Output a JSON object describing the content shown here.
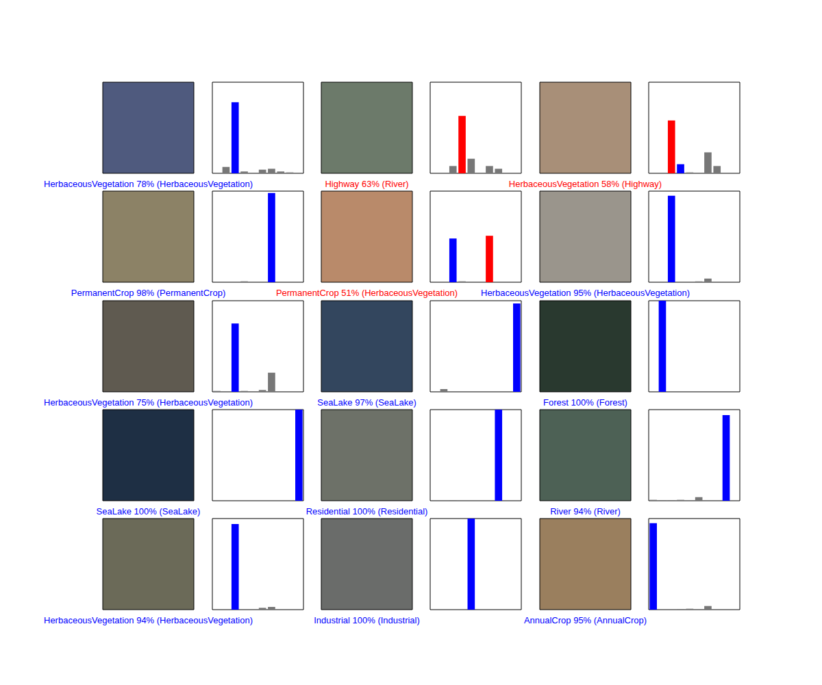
{
  "chart_data": [
    {
      "type": "bar",
      "xlabel": "HerbaceousVegetation 78% (HerbaceousVegetation)",
      "color": "blue",
      "categories": [
        null,
        null,
        null,
        null,
        null,
        null,
        null,
        null,
        null,
        null
      ],
      "values": [
        0,
        0.07,
        0.78,
        0.02,
        0,
        0.04,
        0.05,
        0.02,
        0.01,
        0
      ],
      "colors": [
        "#777777",
        "#777777",
        "blue",
        "#777777",
        "#777777",
        "#777777",
        "#777777",
        "#777777",
        "#777777",
        "#777777"
      ],
      "ylim": [
        0,
        1
      ],
      "yticks": [],
      "tick_labels": false,
      "grid": false
    },
    {
      "type": "bar",
      "xlabel": "Highway 63% (River)",
      "color": "red",
      "categories": [
        null,
        null,
        null,
        null,
        null,
        null,
        null,
        null,
        null,
        null
      ],
      "values": [
        0,
        0,
        0.08,
        0.63,
        0.16,
        0,
        0.08,
        0.05,
        0,
        0
      ],
      "colors": [
        "#777777",
        "#777777",
        "#777777",
        "red",
        "#777777",
        "#777777",
        "#777777",
        "#777777",
        "blue",
        "#777777"
      ],
      "ylim": [
        0,
        1
      ],
      "yticks": [],
      "tick_labels": false,
      "grid": false
    },
    {
      "type": "bar",
      "xlabel": "HerbaceousVegetation 58% (Highway)",
      "color": "red",
      "categories": [
        null,
        null,
        null,
        null,
        null,
        null,
        null,
        null,
        null,
        null
      ],
      "values": [
        0,
        0,
        0.58,
        0.1,
        0.01,
        0,
        0.23,
        0.08,
        0,
        0
      ],
      "colors": [
        "#777777",
        "#777777",
        "red",
        "blue",
        "#777777",
        "#777777",
        "#777777",
        "#777777",
        "#777777",
        "#777777"
      ],
      "ylim": [
        0,
        1
      ],
      "yticks": [],
      "tick_labels": false,
      "grid": false
    },
    {
      "type": "bar",
      "xlabel": "PermanentCrop 98% (PermanentCrop)",
      "color": "blue",
      "categories": [
        null,
        null,
        null,
        null,
        null,
        null,
        null,
        null,
        null,
        null
      ],
      "values": [
        0,
        0,
        0,
        0.01,
        0,
        0,
        0.98,
        0,
        0,
        0
      ],
      "colors": [
        "#777777",
        "#777777",
        "#777777",
        "#777777",
        "#777777",
        "#777777",
        "blue",
        "#777777",
        "#777777",
        "#777777"
      ],
      "ylim": [
        0,
        1
      ],
      "yticks": [],
      "tick_labels": false,
      "grid": false
    },
    {
      "type": "bar",
      "xlabel": "PermanentCrop 51% (HerbaceousVegetation)",
      "color": "red",
      "categories": [
        null,
        null,
        null,
        null,
        null,
        null,
        null,
        null,
        null,
        null
      ],
      "values": [
        0,
        0,
        0.48,
        0.01,
        0,
        0,
        0.51,
        0,
        0,
        0
      ],
      "colors": [
        "#777777",
        "#777777",
        "blue",
        "#777777",
        "#777777",
        "#777777",
        "red",
        "#777777",
        "#777777",
        "#777777"
      ],
      "ylim": [
        0,
        1
      ],
      "yticks": [],
      "tick_labels": false,
      "grid": false
    },
    {
      "type": "bar",
      "xlabel": "HerbaceousVegetation 95% (HerbaceousVegetation)",
      "color": "blue",
      "categories": [
        null,
        null,
        null,
        null,
        null,
        null,
        null,
        null,
        null,
        null
      ],
      "values": [
        0,
        0,
        0.95,
        0,
        0,
        0.01,
        0.04,
        0,
        0,
        0
      ],
      "colors": [
        "#777777",
        "#777777",
        "blue",
        "#777777",
        "#777777",
        "#777777",
        "#777777",
        "#777777",
        "#777777",
        "#777777"
      ],
      "ylim": [
        0,
        1
      ],
      "yticks": [],
      "tick_labels": false,
      "grid": false
    },
    {
      "type": "bar",
      "xlabel": "HerbaceousVegetation 75% (HerbaceousVegetation)",
      "color": "blue",
      "categories": [
        null,
        null,
        null,
        null,
        null,
        null,
        null,
        null,
        null,
        null
      ],
      "values": [
        0.01,
        0,
        0.75,
        0.01,
        0,
        0.02,
        0.21,
        0,
        0,
        0
      ],
      "colors": [
        "#777777",
        "#777777",
        "blue",
        "#777777",
        "#777777",
        "#777777",
        "#777777",
        "#777777",
        "#777777",
        "#777777"
      ],
      "ylim": [
        0,
        1
      ],
      "yticks": [],
      "tick_labels": false,
      "grid": false
    },
    {
      "type": "bar",
      "xlabel": "SeaLake 97% (SeaLake)",
      "color": "blue",
      "categories": [
        null,
        null,
        null,
        null,
        null,
        null,
        null,
        null,
        null,
        null
      ],
      "values": [
        0,
        0.03,
        0,
        0,
        0,
        0,
        0,
        0,
        0,
        0.97
      ],
      "colors": [
        "#777777",
        "#777777",
        "#777777",
        "#777777",
        "#777777",
        "#777777",
        "#777777",
        "#777777",
        "#777777",
        "blue"
      ],
      "ylim": [
        0,
        1
      ],
      "yticks": [],
      "tick_labels": false,
      "grid": false
    },
    {
      "type": "bar",
      "xlabel": "Forest 100% (Forest)",
      "color": "blue",
      "categories": [
        null,
        null,
        null,
        null,
        null,
        null,
        null,
        null,
        null,
        null
      ],
      "values": [
        0,
        1,
        0,
        0,
        0,
        0,
        0,
        0,
        0,
        0
      ],
      "colors": [
        "#777777",
        "blue",
        "#777777",
        "#777777",
        "#777777",
        "#777777",
        "#777777",
        "#777777",
        "#777777",
        "#777777"
      ],
      "ylim": [
        0,
        1
      ],
      "yticks": [],
      "tick_labels": false,
      "grid": false
    },
    {
      "type": "bar",
      "xlabel": "SeaLake 100% (SeaLake)",
      "color": "blue",
      "categories": [
        null,
        null,
        null,
        null,
        null,
        null,
        null,
        null,
        null,
        null
      ],
      "values": [
        0,
        0,
        0,
        0,
        0,
        0,
        0,
        0,
        0,
        1
      ],
      "colors": [
        "#777777",
        "#777777",
        "#777777",
        "#777777",
        "#777777",
        "#777777",
        "#777777",
        "#777777",
        "#777777",
        "blue"
      ],
      "ylim": [
        0,
        1
      ],
      "yticks": [],
      "tick_labels": false,
      "grid": false
    },
    {
      "type": "bar",
      "xlabel": "Residential 100% (Residential)",
      "color": "blue",
      "categories": [
        null,
        null,
        null,
        null,
        null,
        null,
        null,
        null,
        null,
        null
      ],
      "values": [
        0,
        0,
        0.005,
        0,
        0,
        0,
        0,
        1,
        0,
        0
      ],
      "colors": [
        "#777777",
        "#777777",
        "#777777",
        "#777777",
        "#777777",
        "#777777",
        "#777777",
        "blue",
        "#777777",
        "#777777"
      ],
      "ylim": [
        0,
        1
      ],
      "yticks": [],
      "tick_labels": false,
      "grid": false
    },
    {
      "type": "bar",
      "xlabel": "River 94% (River)",
      "color": "blue",
      "categories": [
        null,
        null,
        null,
        null,
        null,
        null,
        null,
        null,
        null,
        null
      ],
      "values": [
        0.01,
        0.005,
        0.005,
        0.01,
        0,
        0.04,
        0,
        0,
        0.94,
        0
      ],
      "colors": [
        "#777777",
        "#777777",
        "#777777",
        "#777777",
        "#777777",
        "#777777",
        "#777777",
        "#777777",
        "blue",
        "#777777"
      ],
      "ylim": [
        0,
        1
      ],
      "yticks": [],
      "tick_labels": false,
      "grid": false
    },
    {
      "type": "bar",
      "xlabel": "HerbaceousVegetation 94% (HerbaceousVegetation)",
      "color": "blue",
      "categories": [
        null,
        null,
        null,
        null,
        null,
        null,
        null,
        null,
        null,
        null
      ],
      "values": [
        0,
        0,
        0.94,
        0,
        0,
        0.02,
        0.03,
        0,
        0,
        0
      ],
      "colors": [
        "#777777",
        "#777777",
        "blue",
        "#777777",
        "#777777",
        "#777777",
        "#777777",
        "#777777",
        "#777777",
        "#777777"
      ],
      "ylim": [
        0,
        1
      ],
      "yticks": [],
      "tick_labels": false,
      "grid": false
    },
    {
      "type": "bar",
      "xlabel": "Industrial 100% (Industrial)",
      "color": "blue",
      "categories": [
        null,
        null,
        null,
        null,
        null,
        null,
        null,
        null,
        null,
        null
      ],
      "values": [
        0,
        0,
        0,
        0,
        1,
        0,
        0,
        0,
        0,
        0
      ],
      "colors": [
        "#777777",
        "#777777",
        "#777777",
        "#777777",
        "blue",
        "#777777",
        "#777777",
        "#777777",
        "#777777",
        "#777777"
      ],
      "ylim": [
        0,
        1
      ],
      "yticks": [],
      "tick_labels": false,
      "grid": false
    },
    {
      "type": "bar",
      "xlabel": "AnnualCrop 95% (AnnualCrop)",
      "color": "blue",
      "categories": [
        null,
        null,
        null,
        null,
        null,
        null,
        null,
        null,
        null,
        null
      ],
      "values": [
        0.95,
        0,
        0,
        0.005,
        0.01,
        0,
        0.04,
        0,
        0,
        0
      ],
      "colors": [
        "blue",
        "#777777",
        "#777777",
        "#777777",
        "#777777",
        "#777777",
        "#777777",
        "#777777",
        "#777777",
        "#777777"
      ],
      "ylim": [
        0,
        1
      ],
      "yticks": [],
      "tick_labels": false,
      "grid": false
    }
  ]
}
